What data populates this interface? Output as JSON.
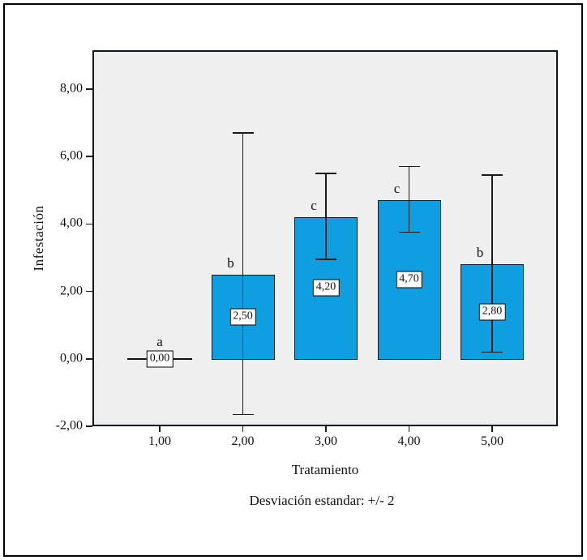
{
  "chart_data": {
    "type": "bar",
    "title": "",
    "xlabel": "Tratamiento",
    "ylabel": "Infestación",
    "footnote": "Desviación estandar: +/- 2",
    "categories": [
      "1,00",
      "2,00",
      "3,00",
      "4,00",
      "5,00"
    ],
    "values": [
      0.0,
      2.5,
      4.2,
      4.7,
      2.8
    ],
    "bar_value_labels": [
      "0,00",
      "2,50",
      "4,20",
      "4,70",
      "2,80"
    ],
    "significance_letters": [
      "a",
      "b",
      "c",
      "c",
      "b"
    ],
    "error_bars": [
      null,
      {
        "top": 6.7,
        "bottom": -1.65
      },
      {
        "top": 5.5,
        "bottom": 2.95
      },
      {
        "top": 5.7,
        "bottom": 3.75
      },
      {
        "top": 5.45,
        "bottom": 0.2
      }
    ],
    "y_ticks": [
      {
        "label": "8,00",
        "value": 8
      },
      {
        "label": "6,00",
        "value": 6
      },
      {
        "label": "4,00",
        "value": 4
      },
      {
        "label": "2,00",
        "value": 2
      },
      {
        "label": "0,00",
        "value": 0
      },
      {
        "label": "-2,00",
        "value": -2
      }
    ],
    "ylim": [
      -2,
      9.15
    ],
    "grid": false,
    "legend": null,
    "colors": {
      "bar_fill": "#0f9ee0",
      "bar_border": "#0c1b2b",
      "plot_background": "#efefef",
      "axis_line": "#10161c",
      "error_bar": "#1a1a1a",
      "label_box_background": "#ffffff",
      "label_box_border": "#000000",
      "outer_border": "#000000"
    }
  }
}
